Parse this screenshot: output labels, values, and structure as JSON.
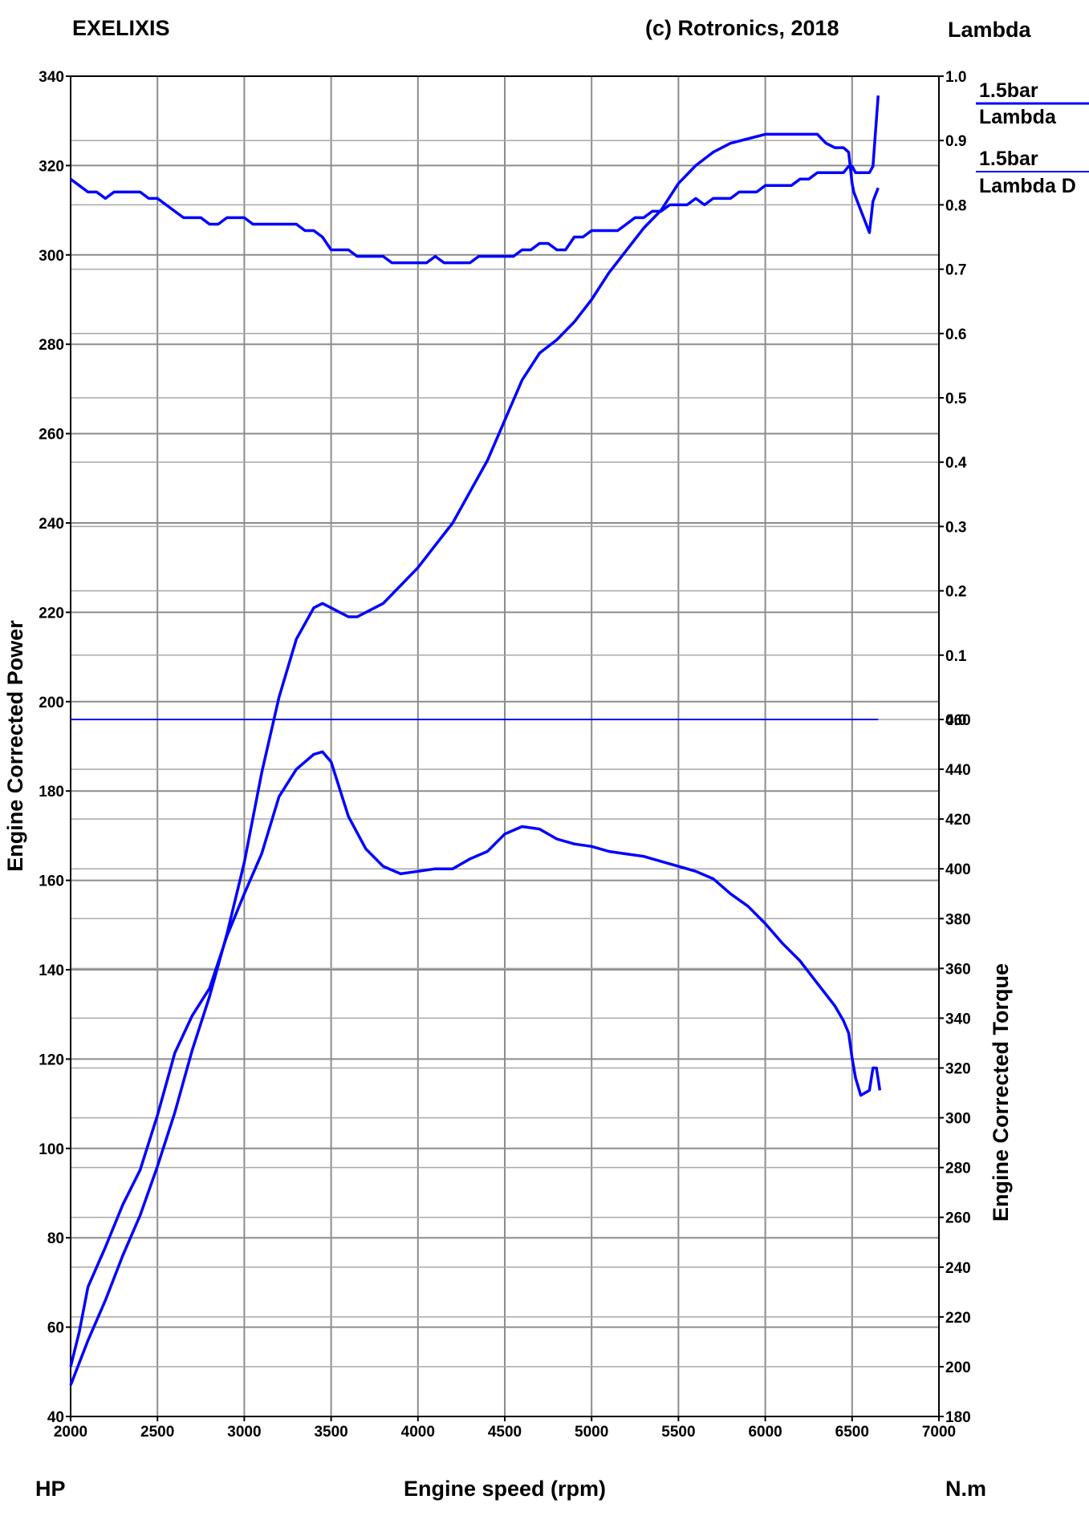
{
  "header": {
    "left": "EXELIXIS",
    "center": "(c) Rotronics, 2018",
    "right": "Lambda"
  },
  "footer": {
    "left_unit": "HP",
    "xlabel": "Engine speed (rpm)",
    "right_unit": "N.m"
  },
  "legend": [
    {
      "line1": "1.5bar",
      "line2": "Lambda",
      "color": "#0000ff"
    },
    {
      "line1": "1.5bar",
      "line2": "Lambda D",
      "color": "#0000ff"
    }
  ],
  "chart_data": {
    "type": "line",
    "xlabel": "Engine speed (rpm)",
    "ylabel_left": "Engine Corrected Power",
    "ylabel_right": "Engine Corrected Torque",
    "xlim": [
      2000,
      7000
    ],
    "xticks": [
      "2000",
      "2500",
      "3000",
      "3500",
      "4000",
      "4500",
      "5000",
      "5500",
      "6000",
      "6500",
      "7000"
    ],
    "power_axis": {
      "unit": "HP",
      "lim": [
        40,
        340
      ],
      "ticks": [
        "40",
        "60",
        "80",
        "100",
        "120",
        "140",
        "160",
        "180",
        "200",
        "220",
        "240",
        "260",
        "280",
        "300",
        "320",
        "340"
      ]
    },
    "torque_axis": {
      "unit": "N.m",
      "lim": [
        180,
        460
      ],
      "ticks": [
        "180",
        "200",
        "220",
        "240",
        "260",
        "280",
        "300",
        "320",
        "340",
        "360",
        "380",
        "400",
        "420",
        "440",
        "460"
      ]
    },
    "lambda_axis": {
      "unit": "Lambda",
      "lim": [
        0.0,
        1.0
      ],
      "ticks": [
        "0.0",
        "0.1",
        "0.2",
        "0.3",
        "0.4",
        "0.5",
        "0.6",
        "0.7",
        "0.8",
        "0.9",
        "1.0"
      ]
    },
    "grid": true,
    "line_color": "#0000ff",
    "series": [
      {
        "axis": "power",
        "x": [
          2000,
          2100,
          2200,
          2300,
          2400,
          2500,
          2600,
          2700,
          2800,
          2900,
          3000,
          3100,
          3200,
          3300,
          3400,
          3450,
          3500,
          3550,
          3600,
          3650,
          3700,
          3800,
          3900,
          4000,
          4100,
          4200,
          4300,
          4400,
          4500,
          4600,
          4700,
          4800,
          4900,
          5000,
          5100,
          5200,
          5300,
          5400,
          5500,
          5600,
          5700,
          5800,
          5900,
          6000,
          6100,
          6200,
          6250,
          6300,
          6350,
          6400,
          6450,
          6480,
          6500,
          6510,
          6550,
          6600,
          6620,
          6650
        ],
        "y": [
          47,
          57,
          66,
          76,
          85,
          96,
          108,
          122,
          134,
          148,
          164,
          184,
          201,
          214,
          221,
          222,
          221,
          220,
          219,
          219,
          220,
          222,
          226,
          230,
          235,
          240,
          247,
          254,
          263,
          272,
          278,
          281,
          285,
          290,
          296,
          301,
          306,
          310,
          316,
          320,
          323,
          325,
          326,
          327,
          327,
          327,
          327,
          327,
          325,
          324,
          324,
          323,
          316,
          314,
          310,
          305,
          312,
          315
        ]
      },
      {
        "axis": "torque",
        "x": [
          2000,
          2050,
          2100,
          2200,
          2300,
          2400,
          2500,
          2600,
          2700,
          2800,
          2900,
          3000,
          3100,
          3200,
          3300,
          3400,
          3450,
          3500,
          3600,
          3700,
          3800,
          3900,
          4000,
          4100,
          4200,
          4250,
          4300,
          4400,
          4500,
          4600,
          4700,
          4800,
          4900,
          5000,
          5100,
          5200,
          5300,
          5400,
          5500,
          5600,
          5700,
          5800,
          5900,
          6000,
          6100,
          6200,
          6300,
          6400,
          6450,
          6480,
          6500,
          6520,
          6550,
          6600,
          6620,
          6640,
          6660
        ],
        "y": [
          200,
          214,
          232,
          248,
          265,
          279,
          301,
          326,
          341,
          352,
          373,
          390,
          406,
          429,
          440,
          446,
          447,
          443,
          421,
          408,
          401,
          398,
          399,
          400,
          400,
          402,
          404,
          407,
          414,
          417,
          416,
          412,
          410,
          409,
          407,
          406,
          405,
          403,
          401,
          399,
          396,
          390,
          385,
          378,
          370,
          363,
          354,
          345,
          339,
          334,
          324,
          316,
          309,
          311,
          320,
          320,
          311
        ]
      },
      {
        "axis": "lambda",
        "x": [
          2000,
          2050,
          2100,
          2150,
          2200,
          2250,
          2300,
          2350,
          2400,
          2450,
          2500,
          2550,
          2600,
          2650,
          2700,
          2750,
          2800,
          2850,
          2900,
          2950,
          3000,
          3050,
          3100,
          3150,
          3200,
          3250,
          3300,
          3350,
          3400,
          3450,
          3500,
          3550,
          3600,
          3650,
          3700,
          3750,
          3800,
          3850,
          3900,
          3950,
          4000,
          4050,
          4100,
          4150,
          4200,
          4250,
          4300,
          4350,
          4400,
          4450,
          4500,
          4550,
          4600,
          4650,
          4700,
          4750,
          4800,
          4850,
          4900,
          4950,
          5000,
          5050,
          5100,
          5150,
          5200,
          5250,
          5300,
          5350,
          5400,
          5450,
          5500,
          5550,
          5600,
          5650,
          5700,
          5750,
          5800,
          5850,
          5900,
          5950,
          6000,
          6050,
          6100,
          6150,
          6200,
          6250,
          6300,
          6350,
          6400,
          6450,
          6480,
          6500,
          6520,
          6550,
          6600,
          6620,
          6650
        ],
        "y": [
          0.84,
          0.83,
          0.82,
          0.82,
          0.81,
          0.82,
          0.82,
          0.82,
          0.82,
          0.81,
          0.81,
          0.8,
          0.79,
          0.78,
          0.78,
          0.78,
          0.77,
          0.77,
          0.78,
          0.78,
          0.78,
          0.77,
          0.77,
          0.77,
          0.77,
          0.77,
          0.77,
          0.76,
          0.76,
          0.75,
          0.73,
          0.73,
          0.73,
          0.72,
          0.72,
          0.72,
          0.72,
          0.71,
          0.71,
          0.71,
          0.71,
          0.71,
          0.72,
          0.71,
          0.71,
          0.71,
          0.71,
          0.72,
          0.72,
          0.72,
          0.72,
          0.72,
          0.73,
          0.73,
          0.74,
          0.74,
          0.73,
          0.73,
          0.75,
          0.75,
          0.76,
          0.76,
          0.76,
          0.76,
          0.77,
          0.78,
          0.78,
          0.79,
          0.79,
          0.8,
          0.8,
          0.8,
          0.81,
          0.8,
          0.81,
          0.81,
          0.81,
          0.82,
          0.82,
          0.82,
          0.83,
          0.83,
          0.83,
          0.83,
          0.84,
          0.84,
          0.85,
          0.85,
          0.85,
          0.85,
          0.86,
          0.86,
          0.85,
          0.85,
          0.85,
          0.86,
          0.97
        ]
      },
      {
        "axis": "lambda",
        "x": [
          2000,
          6650
        ],
        "y": [
          0.0,
          0.0
        ]
      }
    ]
  }
}
